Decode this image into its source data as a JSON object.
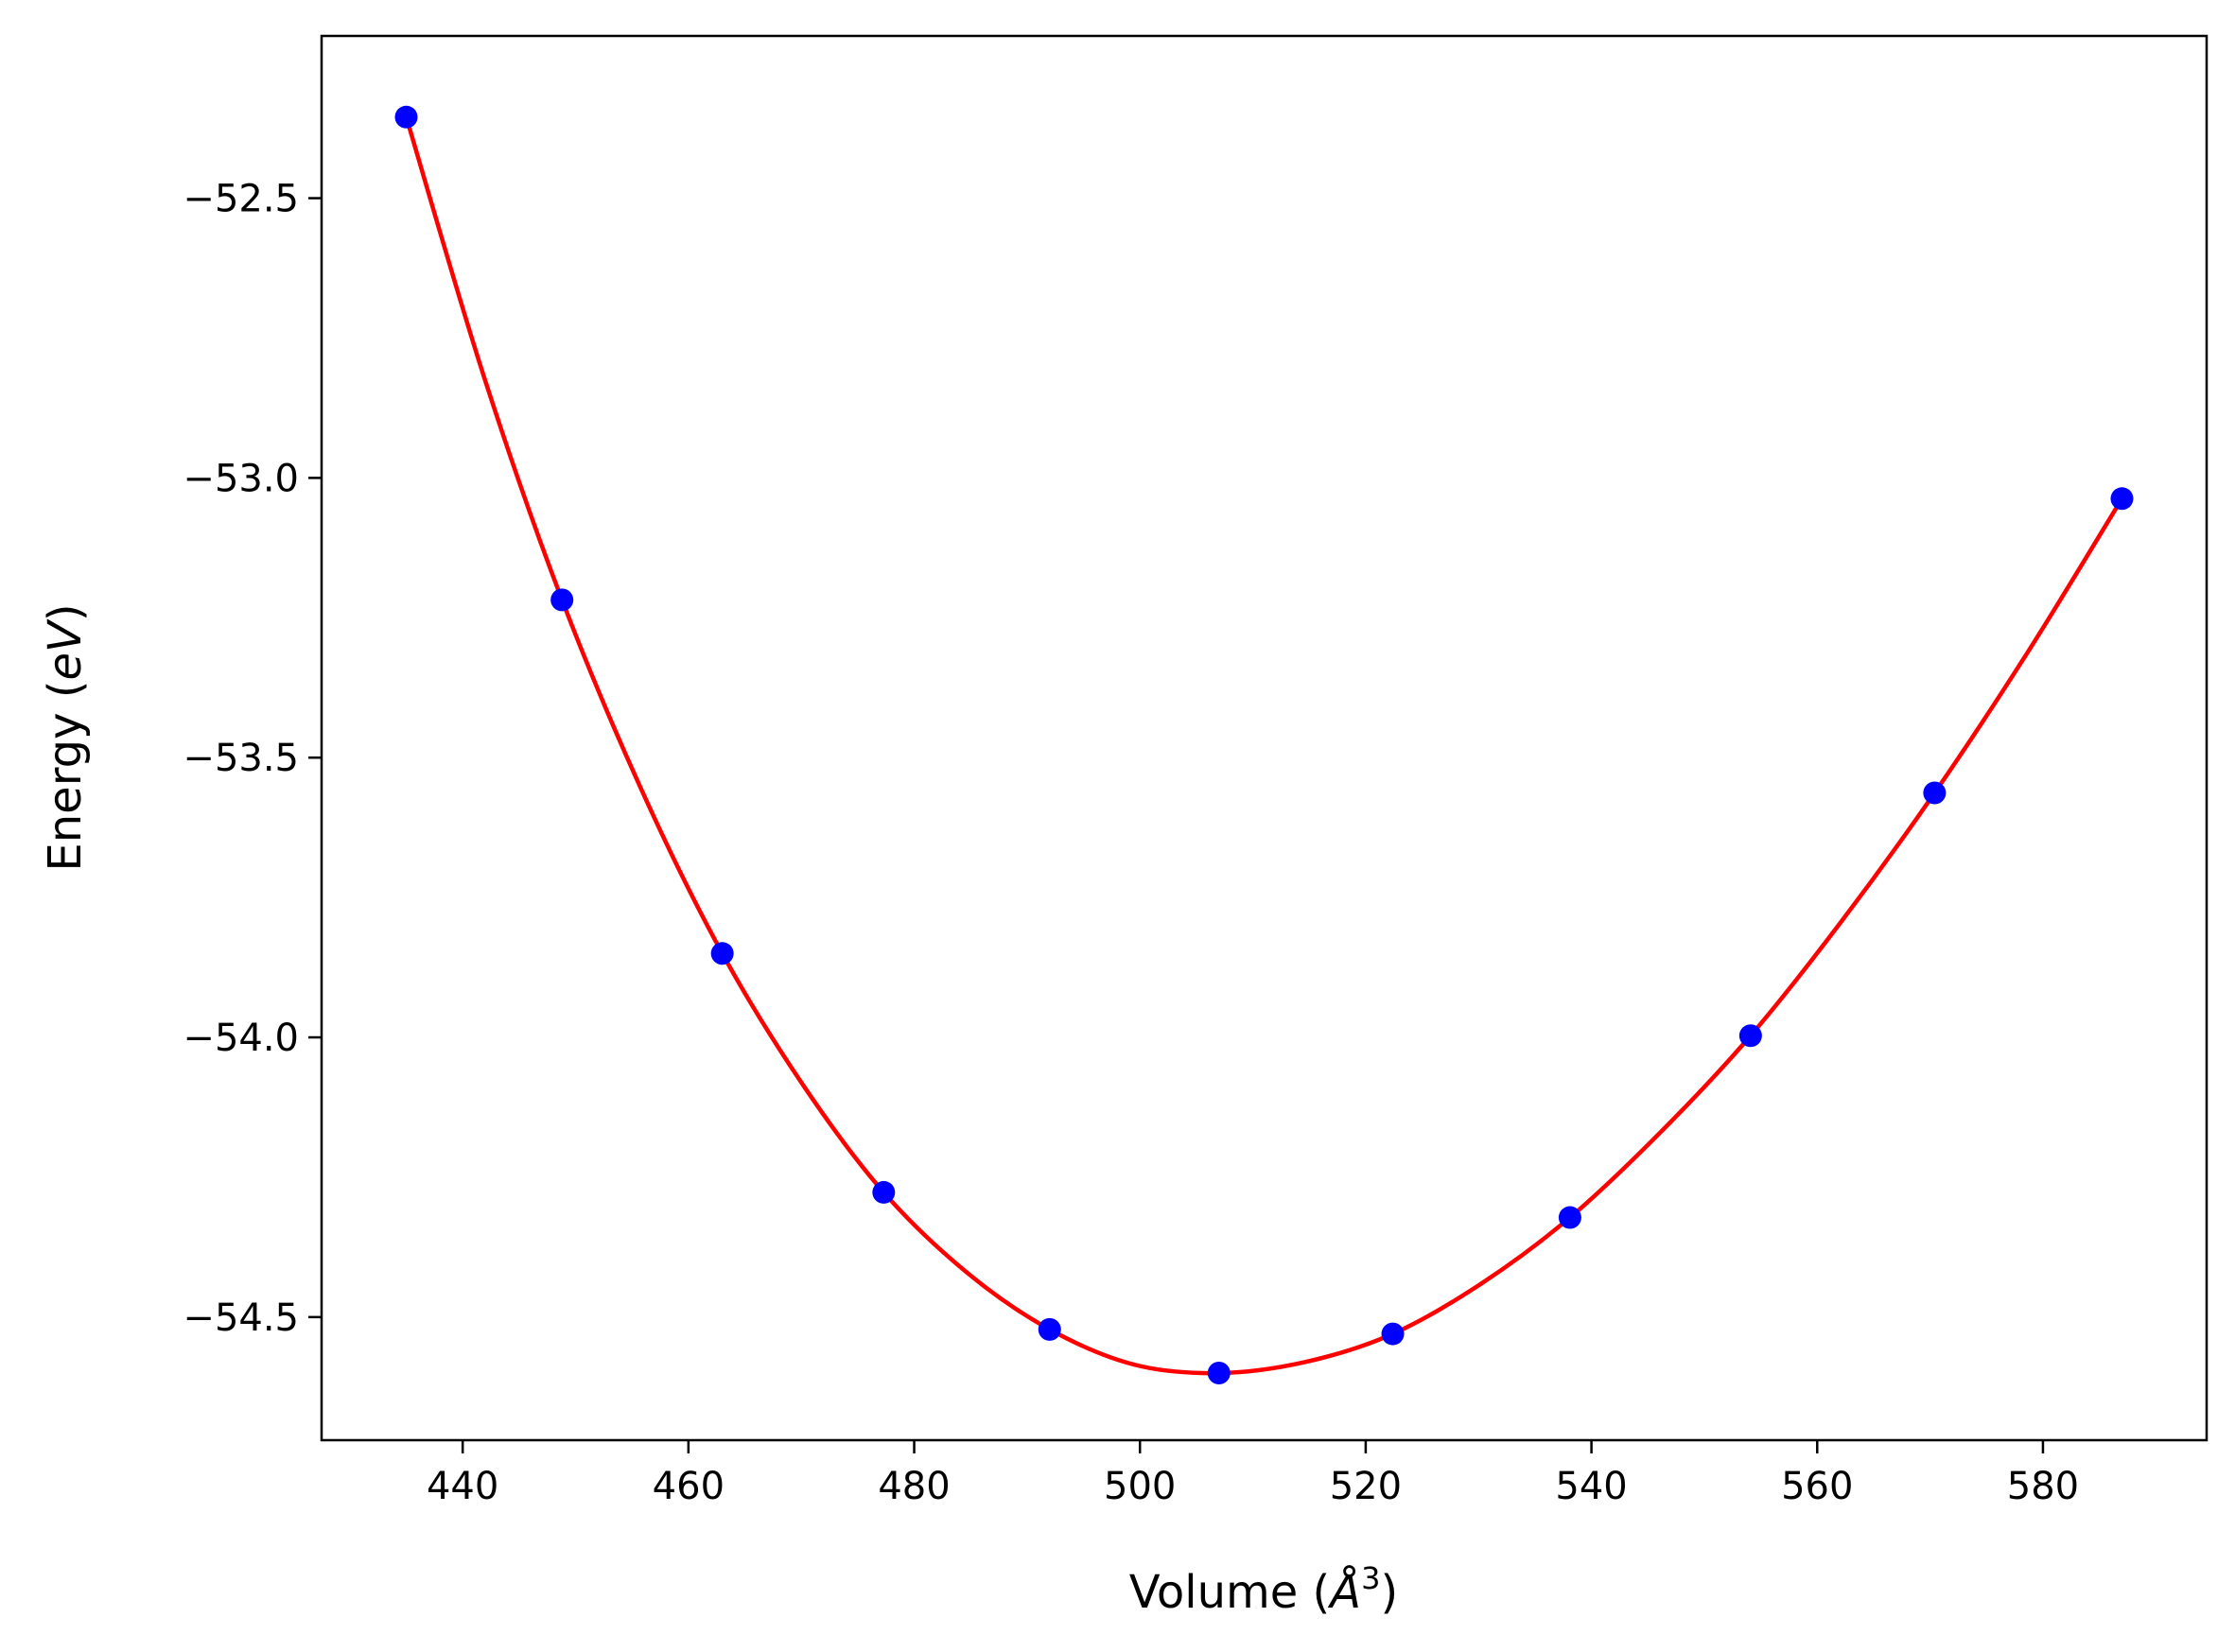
{
  "chart_data": {
    "type": "scatter",
    "title": "",
    "xlabel": "Volume (",
    "xlabel_symbol": "Å",
    "xlabel_sup": "3",
    "xlabel_close": ")",
    "ylabel": "Energy (",
    "ylabel_unit": "eV",
    "ylabel_close": ")",
    "xlim": [
      427.5,
      594.5
    ],
    "ylim": [
      -54.72,
      -52.21
    ],
    "xticks": [
      440,
      460,
      480,
      500,
      520,
      540,
      560,
      580
    ],
    "xtick_labels": [
      "440",
      "460",
      "480",
      "500",
      "520",
      "540",
      "560",
      "580"
    ],
    "yticks": [
      -52.5,
      -53.0,
      -53.5,
      -54.0,
      -54.5
    ],
    "ytick_labels": [
      "−52.5",
      "−53.0",
      "−53.5",
      "−54.0",
      "−54.5"
    ],
    "grid": false,
    "legend": "none",
    "series": [
      {
        "kind": "points",
        "color": "#0000ff",
        "x": [
          435.0,
          448.8,
          463.0,
          477.3,
          492.0,
          507.0,
          522.4,
          538.1,
          554.1,
          570.4,
          587.0
        ],
        "y": [
          -52.355,
          -53.218,
          -53.85,
          -54.277,
          -54.522,
          -54.6,
          -54.53,
          -54.322,
          -53.997,
          -53.563,
          -53.037
        ]
      },
      {
        "kind": "fit-curve",
        "color": "#ff0000",
        "x": [
          435.0,
          441.9,
          448.8,
          455.9,
          463.0,
          470.15,
          477.3,
          484.65,
          492.0,
          499.5,
          507.0,
          514.7,
          522.4,
          530.25,
          538.1,
          546.1,
          554.1,
          562.25,
          570.4,
          578.7,
          587.0
        ],
        "y": [
          -52.355,
          -52.82,
          -53.218,
          -53.56,
          -53.85,
          -54.085,
          -54.277,
          -54.42,
          -54.522,
          -54.585,
          -54.6,
          -54.58,
          -54.53,
          -54.44,
          -54.322,
          -54.17,
          -53.997,
          -53.79,
          -53.563,
          -53.31,
          -53.037
        ]
      }
    ]
  }
}
